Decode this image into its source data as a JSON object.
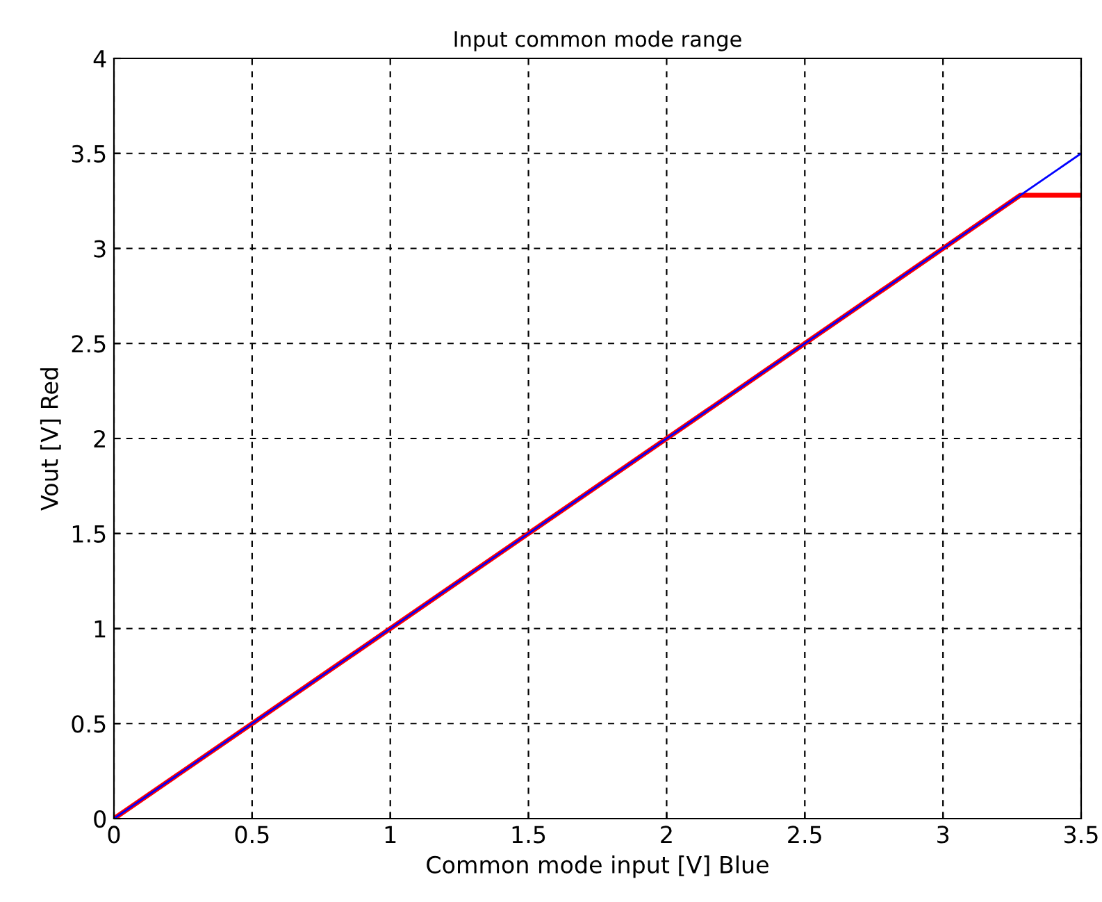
{
  "chart_data": {
    "type": "line",
    "title": "Input common mode range",
    "xlabel": "Common mode input [V] Blue",
    "ylabel": "Vout [V] Red",
    "series": [
      {
        "color": "#ff0000",
        "x": [
          0,
          3.28,
          3.5
        ],
        "values": [
          0,
          3.28,
          3.28
        ]
      },
      {
        "color": "#0000ff",
        "x": [
          0,
          3.5
        ],
        "values": [
          0,
          3.5
        ]
      }
    ],
    "xlim": [
      0,
      3.5
    ],
    "ylim": [
      0,
      4
    ],
    "xticks": [
      0,
      0.5,
      1,
      1.5,
      2,
      2.5,
      3,
      3.5
    ],
    "yticks": [
      0,
      0.5,
      1,
      1.5,
      2,
      2.5,
      3,
      3.5,
      4
    ],
    "grid": true,
    "line_style": "solid"
  }
}
